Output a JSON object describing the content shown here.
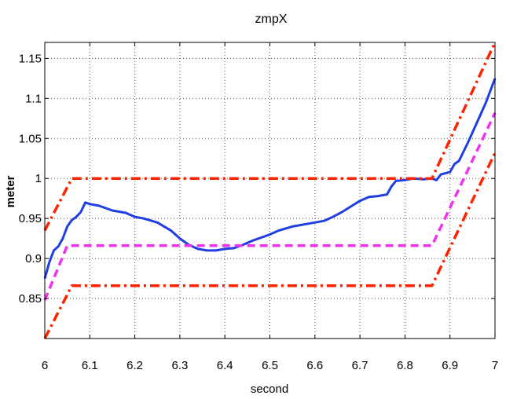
{
  "chart_data": {
    "type": "line",
    "title": "zmpX",
    "xlabel": "second",
    "ylabel": "meter",
    "xlim": [
      6,
      7
    ],
    "ylim": [
      0.8,
      1.17
    ],
    "xticks": [
      "6",
      "6.1",
      "6.2",
      "6.3",
      "6.4",
      "6.5",
      "6.6",
      "6.7",
      "6.8",
      "6.9",
      "7"
    ],
    "yticks": [
      "0.85",
      "0.9",
      "0.95",
      "1",
      "1.05",
      "1.1",
      "1.15"
    ],
    "grid": true,
    "series": [
      {
        "style": "solid",
        "color": "#1f3fe0",
        "points": [
          [
            6.0,
            0.875
          ],
          [
            6.01,
            0.895
          ],
          [
            6.02,
            0.91
          ],
          [
            6.03,
            0.915
          ],
          [
            6.04,
            0.925
          ],
          [
            6.05,
            0.94
          ],
          [
            6.06,
            0.948
          ],
          [
            6.07,
            0.952
          ],
          [
            6.08,
            0.958
          ],
          [
            6.09,
            0.97
          ],
          [
            6.1,
            0.968
          ],
          [
            6.12,
            0.966
          ],
          [
            6.15,
            0.96
          ],
          [
            6.18,
            0.957
          ],
          [
            6.2,
            0.952
          ],
          [
            6.22,
            0.95
          ],
          [
            6.25,
            0.945
          ],
          [
            6.28,
            0.935
          ],
          [
            6.3,
            0.925
          ],
          [
            6.32,
            0.917
          ],
          [
            6.34,
            0.912
          ],
          [
            6.36,
            0.91
          ],
          [
            6.38,
            0.91
          ],
          [
            6.4,
            0.912
          ],
          [
            6.42,
            0.913
          ],
          [
            6.44,
            0.917
          ],
          [
            6.46,
            0.922
          ],
          [
            6.48,
            0.926
          ],
          [
            6.5,
            0.93
          ],
          [
            6.52,
            0.935
          ],
          [
            6.55,
            0.94
          ],
          [
            6.58,
            0.943
          ],
          [
            6.6,
            0.945
          ],
          [
            6.62,
            0.947
          ],
          [
            6.64,
            0.952
          ],
          [
            6.66,
            0.958
          ],
          [
            6.68,
            0.965
          ],
          [
            6.7,
            0.972
          ],
          [
            6.72,
            0.977
          ],
          [
            6.74,
            0.978
          ],
          [
            6.76,
            0.98
          ],
          [
            6.77,
            0.99
          ],
          [
            6.78,
            0.997
          ],
          [
            6.8,
            0.998
          ],
          [
            6.82,
            1.0
          ],
          [
            6.84,
            0.999
          ],
          [
            6.86,
            1.0
          ],
          [
            6.87,
            0.998
          ],
          [
            6.88,
            1.005
          ],
          [
            6.9,
            1.008
          ],
          [
            6.91,
            1.018
          ],
          [
            6.92,
            1.022
          ],
          [
            6.94,
            1.045
          ],
          [
            6.96,
            1.07
          ],
          [
            6.98,
            1.095
          ],
          [
            7.0,
            1.125
          ]
        ]
      },
      {
        "style": "dashed",
        "color": "#ee33ee",
        "points": [
          [
            6.0,
            0.848
          ],
          [
            6.05,
            0.916
          ],
          [
            6.86,
            0.916
          ],
          [
            7.0,
            1.082
          ]
        ]
      },
      {
        "style": "dashdot",
        "color": "#ff2200",
        "points": [
          [
            6.0,
            0.935
          ],
          [
            6.06,
            1.0
          ],
          [
            6.86,
            1.0
          ],
          [
            7.0,
            1.17
          ]
        ]
      },
      {
        "style": "dashdot",
        "color": "#ff2200",
        "points": [
          [
            6.0,
            0.8
          ],
          [
            6.06,
            0.866
          ],
          [
            6.86,
            0.866
          ],
          [
            7.0,
            1.032
          ]
        ]
      }
    ]
  }
}
